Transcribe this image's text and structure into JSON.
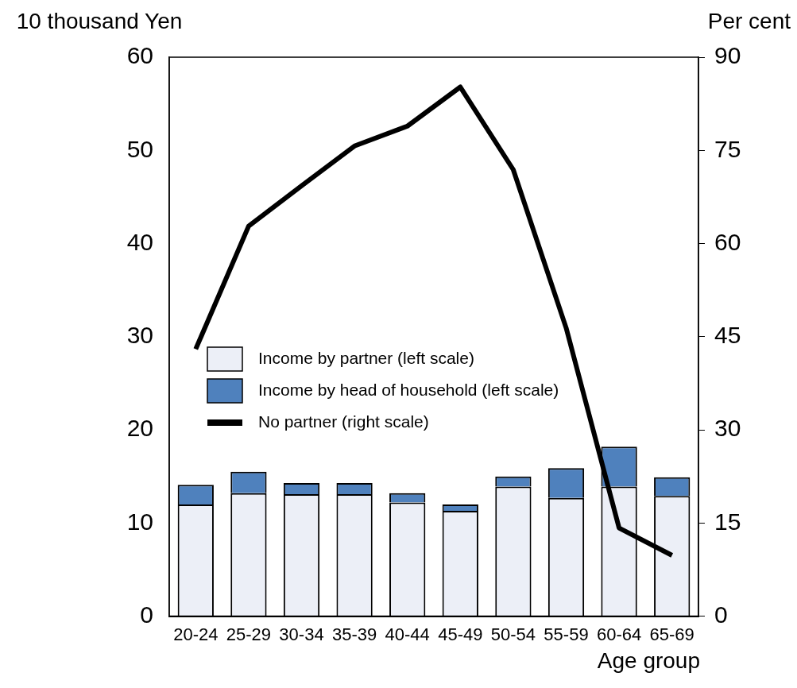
{
  "chart_data": {
    "type": "bar",
    "stacked": true,
    "categories": [
      "20-24",
      "25-29",
      "30-34",
      "35-39",
      "40-44",
      "45-49",
      "50-54",
      "55-59",
      "60-64",
      "65-69"
    ],
    "series": [
      {
        "name": "Income by partner (left scale)",
        "color": "#eceff7",
        "values": [
          12.0,
          13.2,
          13.1,
          13.1,
          12.2,
          11.3,
          13.9,
          12.7,
          13.9,
          12.9
        ]
      },
      {
        "name": "Income by head of household (left scale)",
        "color": "#4f81bd",
        "values": [
          2.1,
          2.3,
          1.2,
          1.2,
          1.0,
          0.7,
          1.1,
          3.2,
          4.3,
          2.0
        ]
      },
      {
        "name": "No partner (right scale)",
        "type": "line",
        "axis": "y2",
        "color": "#000000",
        "values": [
          43.0,
          62.8,
          69.3,
          75.7,
          78.9,
          85.2,
          71.9,
          46.4,
          14.2,
          9.8
        ]
      }
    ],
    "ylim": [
      0,
      60
    ],
    "yticks": [
      0,
      10,
      20,
      30,
      40,
      50,
      60
    ],
    "y2lim": [
      0,
      90
    ],
    "y2ticks": [
      0,
      15,
      30,
      45,
      60,
      75,
      90
    ],
    "ylabel": "10 thousand Yen",
    "y2label": "Per cent",
    "xlabel": "Age group",
    "legend": "left",
    "grid": false,
    "marker": "none",
    "line_style": "solid"
  }
}
